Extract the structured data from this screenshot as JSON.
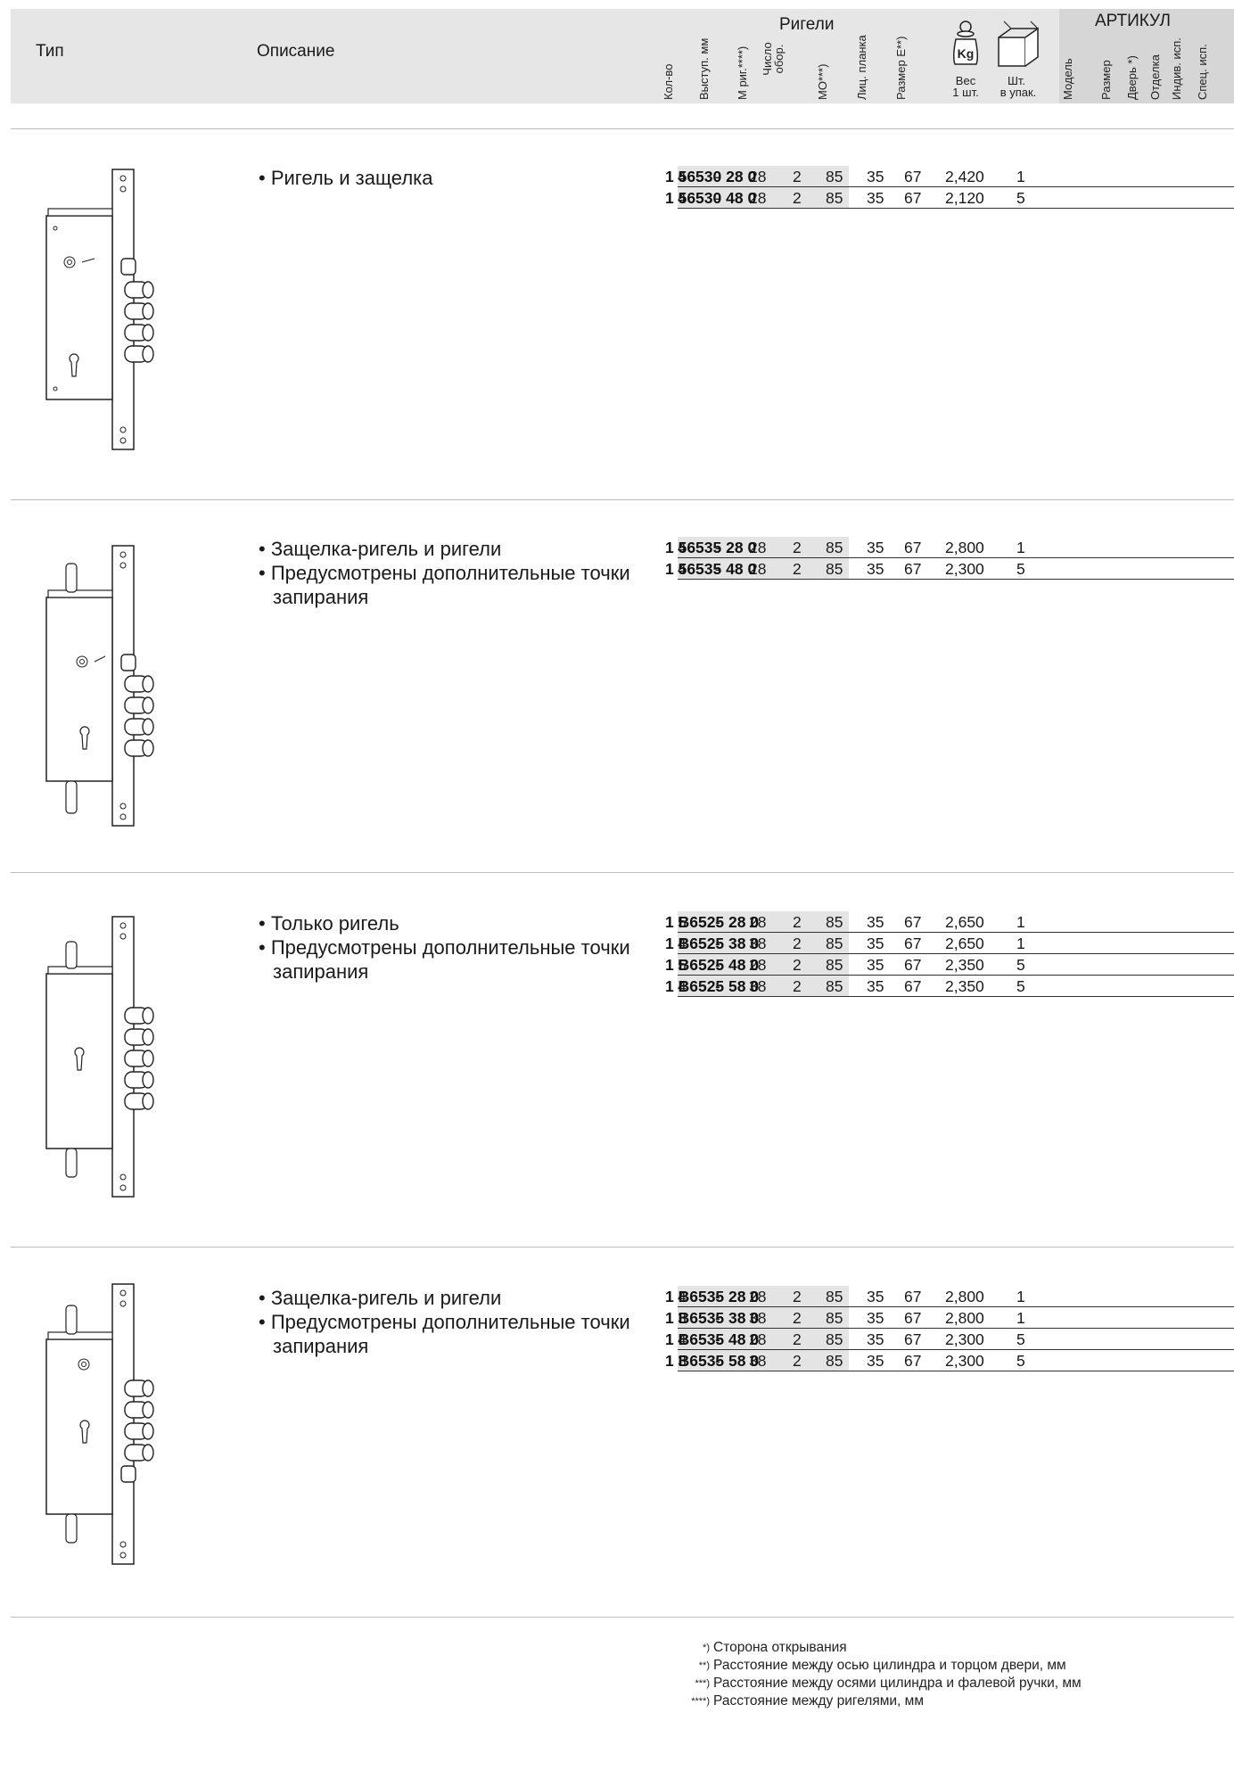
{
  "header": {
    "type_label": "Тип",
    "description_label": "Описание",
    "bolts_group_label": "Ригели",
    "qty_label": "Кол-во",
    "protrusion_label": "Выступ. мм",
    "m_bolt_label": "М риг.****)",
    "turns_label": "Число обор.",
    "mo_label": "МО***)",
    "faceplate_label": "Лиц. планка",
    "size_e_label": "Размер Е**)",
    "weight_label_1": "Вес",
    "weight_label_2": "1 шт.",
    "pack_label_1": "Шт.",
    "pack_label_2": "в упак.",
    "kg_icon_text": "Kg",
    "article_label": "АРТИКУЛ",
    "model_label": "Модель",
    "size_label": "Размер",
    "door_label": "Дверь *)",
    "finish_label": "Отделка",
    "indiv_label": "Индив. исп.",
    "special_label": "Спец. исп."
  },
  "sections": [
    {
      "description": [
        "• Ригель и защелка"
      ],
      "rows": [
        {
          "qty": "4",
          "prot": "-",
          "m": "28",
          "turns": "2",
          "mo": "85",
          "face": "35",
          "e": "67",
          "weight": "2,420",
          "pack": "1",
          "article": "1 56530 28 0"
        },
        {
          "qty": "4",
          "prot": "-",
          "m": "28",
          "turns": "2",
          "mo": "85",
          "face": "35",
          "e": "67",
          "weight": "2,120",
          "pack": "5",
          "article": "1 56530 48 0"
        }
      ]
    },
    {
      "description": [
        "• Защелка-ригель и ригели",
        "• Предусмотрены дополнительные точки запирания"
      ],
      "rows": [
        {
          "qty": "4",
          "prot": "-",
          "m": "28",
          "turns": "2",
          "mo": "85",
          "face": "35",
          "e": "67",
          "weight": "2,800",
          "pack": "1",
          "article": "1 56535 28 0"
        },
        {
          "qty": "4",
          "prot": "-",
          "m": "28",
          "turns": "2",
          "mo": "85",
          "face": "35",
          "e": "67",
          "weight": "2,300",
          "pack": "5",
          "article": "1 56535 48 0"
        }
      ]
    },
    {
      "description": [
        "• Только ригель",
        "• Предусмотрены дополнительные точки запирания"
      ],
      "rows": [
        {
          "qty": "5",
          "prot": "-",
          "m": "28",
          "turns": "2",
          "mo": "85",
          "face": "35",
          "e": "67",
          "weight": "2,650",
          "pack": "1",
          "article": "1 B6525 28 0"
        },
        {
          "qty": "4",
          "prot": "-",
          "m": "38",
          "turns": "2",
          "mo": "85",
          "face": "35",
          "e": "67",
          "weight": "2,650",
          "pack": "1",
          "article": "1 B6525 38 0"
        },
        {
          "qty": "5",
          "prot": "-",
          "m": "28",
          "turns": "2",
          "mo": "85",
          "face": "35",
          "e": "67",
          "weight": "2,350",
          "pack": "5",
          "article": "1 B6525 48 0"
        },
        {
          "qty": "4",
          "prot": "-",
          "m": "38",
          "turns": "2",
          "mo": "85",
          "face": "35",
          "e": "67",
          "weight": "2,350",
          "pack": "5",
          "article": "1 B6525 58 0"
        }
      ]
    },
    {
      "description": [
        "• Защелка-ригель и ригели",
        "• Предусмотрены дополнительные точки запирания"
      ],
      "rows": [
        {
          "qty": "4",
          "prot": "-",
          "m": "28",
          "turns": "2",
          "mo": "85",
          "face": "35",
          "e": "67",
          "weight": "2,800",
          "pack": "1",
          "article": "1 B6535 28 0"
        },
        {
          "qty": "3",
          "prot": "-",
          "m": "38",
          "turns": "2",
          "mo": "85",
          "face": "35",
          "e": "67",
          "weight": "2,800",
          "pack": "1",
          "article": "1 B6535 38 0"
        },
        {
          "qty": "4",
          "prot": "-",
          "m": "28",
          "turns": "2",
          "mo": "85",
          "face": "35",
          "e": "67",
          "weight": "2,300",
          "pack": "5",
          "article": "1 B6535 48 0"
        },
        {
          "qty": "3",
          "prot": "-",
          "m": "38",
          "turns": "2",
          "mo": "85",
          "face": "35",
          "e": "67",
          "weight": "2,300",
          "pack": "5",
          "article": "1 B6535 58 0"
        }
      ]
    }
  ],
  "footnotes": [
    {
      "mark": "*)",
      "text": "Сторона открывания"
    },
    {
      "mark": "**)",
      "text": "Расстояние между осью цилиндра и торцом двери, мм"
    },
    {
      "mark": "***)",
      "text": "Расстояние между осями цилиндра и фалевой ручки, мм"
    },
    {
      "mark": "****)",
      "text": "Расстояние между ригелями, мм"
    }
  ]
}
